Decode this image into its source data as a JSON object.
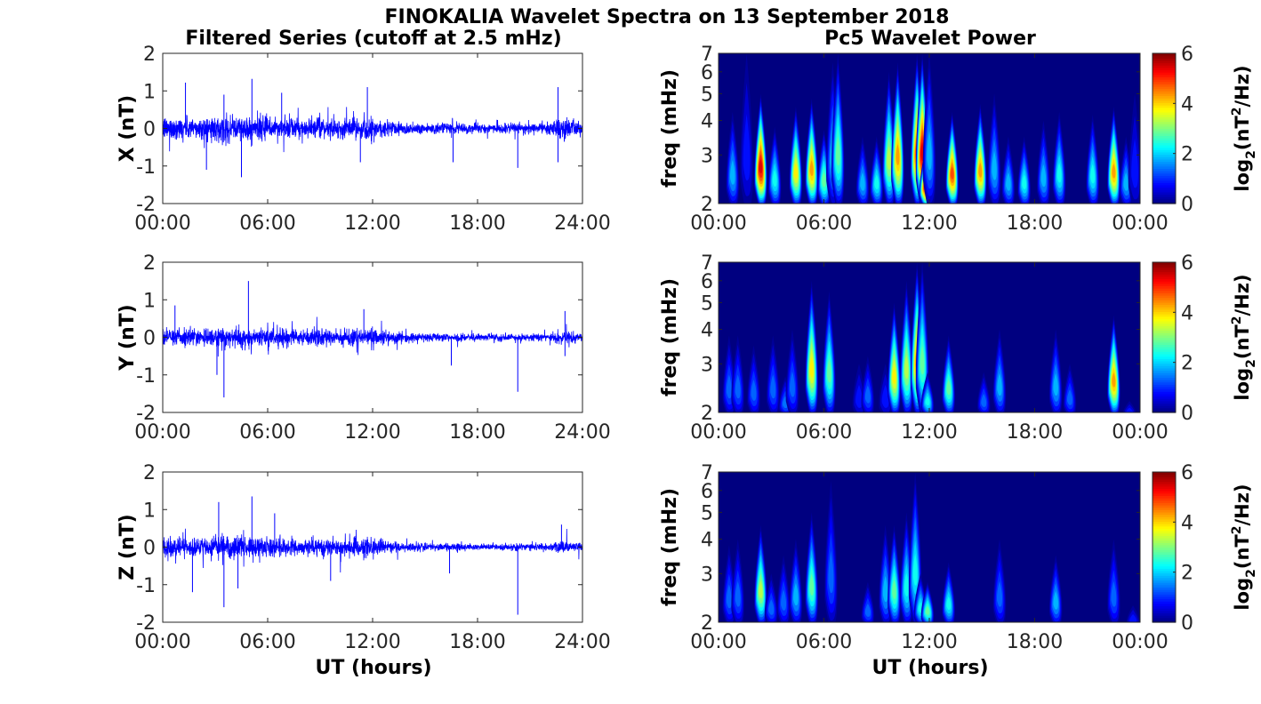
{
  "chart_data": {
    "title": "FINOKALIA Wavelet Spectra on 13 September 2018",
    "left_title": "Filtered Series (cutoff at 2.5 mHz)",
    "right_title": "Pc5 Wavelet Power",
    "xlabel": "UT (hours)",
    "timeseries": {
      "type": "line",
      "color": "#0000ff",
      "xlim": [
        0,
        24
      ],
      "ylim": [
        -2,
        2
      ],
      "xticks": [
        "00:00",
        "06:00",
        "12:00",
        "18:00",
        "24:00"
      ],
      "yticks": [
        "-2",
        "-1",
        "0",
        "1",
        "2"
      ],
      "panels": [
        {
          "ylabel": "X (nT)",
          "envelope_hours": [
            0,
            2,
            4,
            6,
            8,
            10,
            12,
            14,
            16,
            18,
            20,
            22,
            23,
            24
          ],
          "envelope_amp": [
            0.28,
            0.26,
            0.3,
            0.28,
            0.22,
            0.22,
            0.25,
            0.14,
            0.12,
            0.11,
            0.11,
            0.14,
            0.26,
            0.13
          ],
          "spikes": [
            [
              1.3,
              1.22
            ],
            [
              2.5,
              -1.1
            ],
            [
              4.5,
              -1.3
            ],
            [
              5.1,
              1.32
            ],
            [
              3.5,
              0.9
            ],
            [
              6.8,
              0.95
            ],
            [
              11.7,
              1.1
            ],
            [
              11.3,
              -0.9
            ],
            [
              16.6,
              -0.9
            ],
            [
              20.3,
              -1.05
            ],
            [
              22.6,
              1.1
            ],
            [
              22.6,
              -0.9
            ]
          ]
        },
        {
          "ylabel": "Y (nT)",
          "envelope_hours": [
            0,
            2,
            4,
            6,
            8,
            10,
            12,
            14,
            16,
            18,
            20,
            22,
            23,
            24
          ],
          "envelope_amp": [
            0.2,
            0.2,
            0.24,
            0.22,
            0.18,
            0.2,
            0.22,
            0.1,
            0.09,
            0.09,
            0.08,
            0.08,
            0.2,
            0.08
          ],
          "spikes": [
            [
              0.7,
              0.85
            ],
            [
              3.5,
              -1.6
            ],
            [
              3.1,
              -1.0
            ],
            [
              4.9,
              1.5
            ],
            [
              11.5,
              0.75
            ],
            [
              16.5,
              -0.75
            ],
            [
              20.3,
              -1.45
            ],
            [
              23,
              0.7
            ],
            [
              23,
              -0.5
            ]
          ]
        },
        {
          "ylabel": "Z (nT)",
          "envelope_hours": [
            0,
            2,
            4,
            6,
            8,
            10,
            12,
            14,
            16,
            18,
            20,
            22,
            23,
            24
          ],
          "envelope_amp": [
            0.22,
            0.22,
            0.26,
            0.24,
            0.18,
            0.2,
            0.2,
            0.1,
            0.09,
            0.08,
            0.08,
            0.08,
            0.16,
            0.08
          ],
          "spikes": [
            [
              1.7,
              -1.2
            ],
            [
              3.2,
              1.2
            ],
            [
              3.5,
              -1.6
            ],
            [
              4.3,
              -1.1
            ],
            [
              5.1,
              1.35
            ],
            [
              6.4,
              0.9
            ],
            [
              9.6,
              -0.9
            ],
            [
              16.4,
              -0.7
            ],
            [
              20.3,
              -1.8
            ],
            [
              22.8,
              0.6
            ]
          ]
        }
      ]
    },
    "spectrogram": {
      "type": "heatmap",
      "ylabel": "freq (mHz)",
      "yscale": "log",
      "ylim": [
        2,
        7
      ],
      "yticks": [
        "2",
        "3",
        "4",
        "5",
        "6",
        "7"
      ],
      "xticks": [
        "00:00",
        "06:00",
        "12:00",
        "18:00",
        "00:00"
      ],
      "xlim": [
        0,
        24
      ],
      "colormap": "jet",
      "clim": [
        0,
        6
      ],
      "colorbar_ticks": [
        "0",
        "2",
        "4",
        "6"
      ],
      "colorbar_label": "log2(nT²/Hz)",
      "colorbar_label_parts": {
        "base": "log",
        "sub": "2",
        "open": "(nT",
        "sup": "2",
        "close": "/Hz)"
      },
      "bursts_note": "each burst: [hour, top frequency mHz, peak log2 power]",
      "panels": [
        {
          "bursts": [
            [
              0.8,
              4.3,
              2
            ],
            [
              1.6,
              7,
              1
            ],
            [
              2.4,
              5,
              5.6
            ],
            [
              3.2,
              3.8,
              2.5
            ],
            [
              4.4,
              4.5,
              4
            ],
            [
              5.3,
              4.8,
              4.5
            ],
            [
              6.0,
              3.7,
              3
            ],
            [
              6.5,
              6.5,
              2
            ],
            [
              6.8,
              7,
              3
            ],
            [
              8.2,
              3.5,
              2
            ],
            [
              9.0,
              3.5,
              2.5
            ],
            [
              9.7,
              6,
              3.5
            ],
            [
              10.2,
              6.5,
              4.5
            ],
            [
              11.3,
              7,
              5
            ],
            [
              11.6,
              7,
              5.6
            ],
            [
              11.8,
              3.2,
              5.5
            ],
            [
              12.0,
              7,
              2
            ],
            [
              13.3,
              4.3,
              5
            ],
            [
              14.9,
              4.6,
              4.5
            ],
            [
              15.7,
              5,
              2
            ],
            [
              16.5,
              3.5,
              2
            ],
            [
              17.4,
              3.5,
              2.5
            ],
            [
              18.5,
              4,
              2
            ],
            [
              19.4,
              4.3,
              2.5
            ],
            [
              21.3,
              4.2,
              2.5
            ],
            [
              22.5,
              4.5,
              4.5
            ],
            [
              23.2,
              3.5,
              2
            ],
            [
              23.7,
              5,
              1
            ]
          ]
        },
        {
          "bursts": [
            [
              0.6,
              3.8,
              1.5
            ],
            [
              1.1,
              3.8,
              1.5
            ],
            [
              2.0,
              3.5,
              1.5
            ],
            [
              3.1,
              3.8,
              1.5
            ],
            [
              3.8,
              2.7,
              1.6
            ],
            [
              4.2,
              4,
              1.5
            ],
            [
              5.3,
              6,
              4
            ],
            [
              6.3,
              5.5,
              3
            ],
            [
              8.0,
              3,
              1
            ],
            [
              8.5,
              3.2,
              1.5
            ],
            [
              9.5,
              3,
              1
            ],
            [
              10.0,
              5,
              4
            ],
            [
              10.7,
              6,
              3.5
            ],
            [
              11.3,
              7,
              4.5
            ],
            [
              11.6,
              7,
              3
            ],
            [
              11.9,
              2.8,
              2.5
            ],
            [
              13.1,
              3.8,
              3
            ],
            [
              15.1,
              2.8,
              1.5
            ],
            [
              16.0,
              4,
              2
            ],
            [
              19.2,
              4,
              2
            ],
            [
              20.0,
              3,
              1.5
            ],
            [
              22.5,
              4.5,
              4.5
            ],
            [
              23.4,
              2.2,
              1
            ]
          ]
        },
        {
          "bursts": [
            [
              0.6,
              3.8,
              1.5
            ],
            [
              1.1,
              4,
              1.5
            ],
            [
              2.4,
              4.5,
              3.5
            ],
            [
              3.0,
              3,
              1.5
            ],
            [
              3.7,
              3.5,
              1.5
            ],
            [
              4.4,
              4,
              2
            ],
            [
              5.3,
              5,
              3
            ],
            [
              6.4,
              6.5,
              1.5
            ],
            [
              8.5,
              2.8,
              1.5
            ],
            [
              9.5,
              4.5,
              2
            ],
            [
              10.0,
              4.5,
              3
            ],
            [
              10.7,
              5,
              2.5
            ],
            [
              11.2,
              7,
              2.5
            ],
            [
              11.5,
              3,
              2.5
            ],
            [
              11.9,
              2.8,
              3
            ],
            [
              13.1,
              3.3,
              2.5
            ],
            [
              16.0,
              4,
              1.5
            ],
            [
              19.2,
              3.5,
              2
            ],
            [
              22.5,
              4,
              1.5
            ],
            [
              23.6,
              2.3,
              1
            ]
          ]
        }
      ]
    }
  }
}
